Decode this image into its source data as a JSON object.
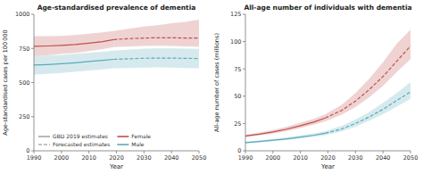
{
  "chart_data": [
    {
      "type": "line",
      "title": "Age-standardised prevalence of dementia",
      "xlabel": "Year",
      "ylabel": "Age-standardised cases per 100 000",
      "xlim": [
        1990,
        2050
      ],
      "xticks": [
        1990,
        2000,
        2010,
        2020,
        2030,
        2040,
        2050
      ],
      "ylim": [
        0,
        1000
      ],
      "yticks": [
        0,
        250,
        500,
        750,
        1000
      ],
      "legend": "lower left",
      "segments": [
        {
          "name": "GBD 2019 estimates",
          "line_style": "solid",
          "x": [
            1990,
            1995,
            2000,
            2005,
            2010,
            2015,
            2019
          ]
        },
        {
          "name": "Forecasted estimates",
          "line_style": "dashed",
          "x": [
            2019,
            2025,
            2030,
            2035,
            2040,
            2045,
            2050
          ]
        }
      ],
      "series": [
        {
          "name": "Female",
          "color": "#c0504d",
          "parts": [
            {
              "values": [
                765,
                768,
                772,
                778,
                788,
                800,
                815
              ],
              "lo": [
                695,
                700,
                710,
                718,
                730,
                745,
                760
              ],
              "hi": [
                840,
                840,
                842,
                848,
                858,
                868,
                878
              ]
            },
            {
              "values": [
                815,
                822,
                826,
                828,
                828,
                826,
                826
              ],
              "lo": [
                760,
                765,
                768,
                770,
                768,
                765,
                762
              ],
              "hi": [
                878,
                895,
                910,
                920,
                935,
                945,
                960
              ]
            }
          ]
        },
        {
          "name": "Male",
          "color": "#5aabba",
          "parts": [
            {
              "values": [
                628,
                632,
                638,
                645,
                654,
                662,
                670
              ],
              "lo": [
                558,
                563,
                570,
                578,
                588,
                597,
                605
              ],
              "hi": [
                695,
                698,
                703,
                710,
                718,
                726,
                733
              ]
            },
            {
              "values": [
                670,
                674,
                678,
                679,
                679,
                677,
                676
              ],
              "lo": [
                605,
                607,
                610,
                611,
                610,
                607,
                605
              ],
              "hi": [
                733,
                742,
                748,
                750,
                750,
                748,
                746
              ]
            }
          ]
        }
      ]
    },
    {
      "type": "line",
      "title": "All-age number of individuals with dementia",
      "xlabel": "Year",
      "ylabel": "All-age number of cases (millions)",
      "xlim": [
        1990,
        2050
      ],
      "xticks": [
        1990,
        2000,
        2010,
        2020,
        2030,
        2040,
        2050
      ],
      "ylim": [
        0,
        125
      ],
      "yticks": [
        0,
        25,
        50,
        75,
        100,
        125
      ],
      "segments": [
        {
          "line_style": "solid",
          "x": [
            1990,
            1995,
            2000,
            2005,
            2010,
            2015,
            2019
          ]
        },
        {
          "line_style": "dashed",
          "x": [
            2019,
            2025,
            2030,
            2035,
            2040,
            2045,
            2050
          ]
        }
      ],
      "series": [
        {
          "color": "#c0504d",
          "parts": [
            {
              "values": [
                13.5,
                15.2,
                17.2,
                19.8,
                23.0,
                26.5,
                30.0
              ],
              "lo": [
                12.5,
                14.0,
                15.8,
                18.0,
                20.8,
                24.0,
                27.0
              ],
              "hi": [
                14.8,
                16.8,
                19.0,
                22.0,
                25.8,
                29.5,
                33.5
              ]
            },
            {
              "values": [
                30.0,
                37.0,
                45.5,
                56.0,
                68.0,
                82.0,
                96.0
              ],
              "lo": [
                27.0,
                33.0,
                40.0,
                49.0,
                59.5,
                72.0,
                84.0
              ],
              "hi": [
                33.5,
                42.0,
                53.0,
                66.0,
                81.0,
                98.0,
                111.0
              ]
            }
          ]
        },
        {
          "color": "#5aabba",
          "parts": [
            {
              "values": [
                7.5,
                8.5,
                9.7,
                11.0,
                12.5,
                14.3,
                16.0
              ],
              "lo": [
                6.8,
                7.7,
                8.8,
                9.9,
                11.2,
                12.8,
                14.2
              ],
              "hi": [
                8.3,
                9.5,
                10.8,
                12.2,
                14.0,
                16.0,
                18.0
              ]
            },
            {
              "values": [
                16.0,
                20.0,
                25.0,
                31.0,
                38.0,
                46.0,
                54.0
              ],
              "lo": [
                14.2,
                17.8,
                22.0,
                27.5,
                33.5,
                40.5,
                47.5
              ],
              "hi": [
                18.0,
                22.8,
                28.5,
                35.5,
                44.0,
                53.0,
                63.0
              ]
            }
          ]
        }
      ]
    }
  ]
}
